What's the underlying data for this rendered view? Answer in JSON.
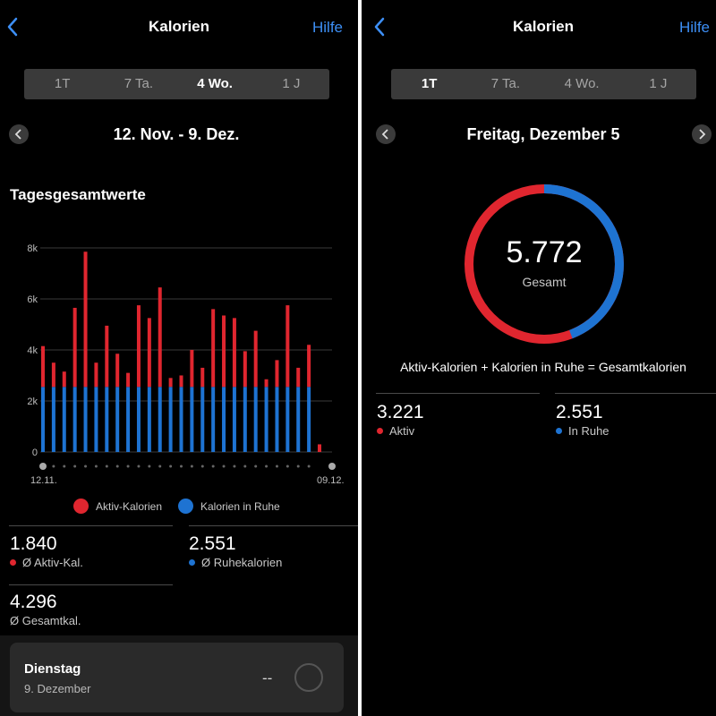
{
  "colors": {
    "active": "#e0262f",
    "rest": "#1e73d2",
    "accent": "#3d8ff5"
  },
  "left": {
    "header": {
      "title": "Kalorien",
      "help": "Hilfe",
      "back_icon": "chevron-left-icon"
    },
    "tabs": [
      {
        "label": "1T",
        "active": false
      },
      {
        "label": "7 Ta.",
        "active": false
      },
      {
        "label": "4 Wo.",
        "active": true
      },
      {
        "label": "1 J",
        "active": false
      }
    ],
    "date_range": "12. Nov. - 9. Dez.",
    "section_title": "Tagesgesamtwerte",
    "chart_data": {
      "type": "bar",
      "stacked": true,
      "y_ticks": [
        "0",
        "2k",
        "4k",
        "6k",
        "8k"
      ],
      "ylim": [
        0,
        8000
      ],
      "x_start_label": "12.11.",
      "x_end_label": "09.12.",
      "legend": [
        "Aktiv-Kalorien",
        "Kalorien in Ruhe"
      ],
      "legend_placement": "bottom",
      "series": [
        {
          "name": "Aktiv-Kalorien",
          "values": [
            1600,
            950,
            600,
            3100,
            5300,
            950,
            2400,
            1300,
            550,
            3200,
            2700,
            3900,
            350,
            450,
            1450,
            750,
            3050,
            2800,
            2700,
            1400,
            2200,
            300,
            1050,
            3200,
            750,
            1650,
            300
          ]
        },
        {
          "name": "Kalorien in Ruhe",
          "values": [
            2551,
            2551,
            2551,
            2551,
            2551,
            2551,
            2551,
            2551,
            2551,
            2551,
            2551,
            2551,
            2551,
            2551,
            2551,
            2551,
            2551,
            2551,
            2551,
            2551,
            2551,
            2551,
            2551,
            2551,
            2551,
            2551,
            0
          ]
        }
      ]
    },
    "stats": [
      {
        "value": "1.840",
        "label": "Ø Aktiv-Kal.",
        "dot": "active"
      },
      {
        "value": "2.551",
        "label": "Ø Ruhekalorien",
        "dot": "rest"
      },
      {
        "value": "4.296",
        "label": "Ø Gesamtkal."
      }
    ],
    "day_card": {
      "title": "Dienstag",
      "subtitle": "9. Dezember",
      "value": "--"
    }
  },
  "right": {
    "header": {
      "title": "Kalorien",
      "help": "Hilfe",
      "back_icon": "chevron-left-icon"
    },
    "tabs": [
      {
        "label": "1T",
        "active": true
      },
      {
        "label": "7 Ta.",
        "active": false
      },
      {
        "label": "4 Wo.",
        "active": false
      },
      {
        "label": "1 J",
        "active": false
      }
    ],
    "date": "Freitag, Dezember 5",
    "ring": {
      "total": "5.772",
      "label": "Gesamt",
      "active_value": 3221,
      "rest_value": 2551
    },
    "formula": "Aktiv-Kalorien + Kalorien in Ruhe = Gesamtkalorien",
    "stats": [
      {
        "value": "3.221",
        "label": "Aktiv",
        "dot": "active"
      },
      {
        "value": "2.551",
        "label": "In Ruhe",
        "dot": "rest"
      }
    ]
  }
}
